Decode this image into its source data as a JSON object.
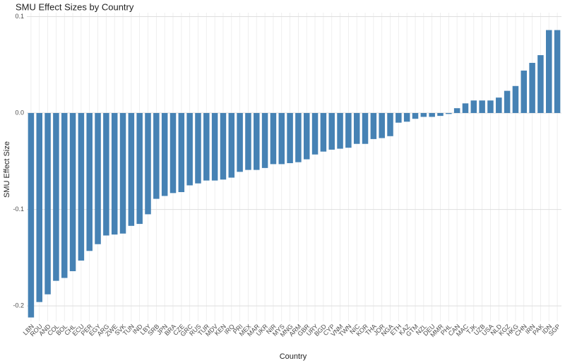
{
  "chart_data": {
    "type": "bar",
    "title": "SMU Effect Sizes by Country",
    "x_label": "Country",
    "y_label": "SMU Effect Size",
    "categories": [
      "LBN",
      "ROU",
      "AND",
      "COL",
      "BOL",
      "CHL",
      "ECU",
      "PER",
      "EGY",
      "ARG",
      "ZWE",
      "SVK",
      "TUN",
      "IND",
      "LBY",
      "SRB",
      "JPN",
      "BRA",
      "CZE",
      "GRC",
      "RUS",
      "TUR",
      "MDV",
      "KEN",
      "IRQ",
      "PRI",
      "MEX",
      "MAR",
      "UKR",
      "NIR",
      "MYS",
      "MNG",
      "ARM",
      "GBR",
      "URY",
      "BGD",
      "CYP",
      "VNM",
      "TWN",
      "NIC",
      "KOR",
      "THA",
      "JOR",
      "NGA",
      "ETH",
      "KAZ",
      "GTM",
      "NZL",
      "DEU",
      "MMR",
      "PHL",
      "CAN",
      "MAC",
      "TJK",
      "UZB",
      "USA",
      "NLD",
      "KGZ",
      "HKG",
      "CHN",
      "IRN",
      "PAK",
      "IDN",
      "SGP"
    ],
    "values": [
      -0.212,
      -0.196,
      -0.188,
      -0.174,
      -0.171,
      -0.164,
      -0.153,
      -0.143,
      -0.136,
      -0.127,
      -0.126,
      -0.125,
      -0.117,
      -0.115,
      -0.105,
      -0.089,
      -0.086,
      -0.083,
      -0.082,
      -0.075,
      -0.073,
      -0.07,
      -0.07,
      -0.069,
      -0.067,
      -0.061,
      -0.059,
      -0.059,
      -0.057,
      -0.053,
      -0.053,
      -0.052,
      -0.051,
      -0.048,
      -0.043,
      -0.04,
      -0.038,
      -0.037,
      -0.036,
      -0.032,
      -0.032,
      -0.027,
      -0.026,
      -0.024,
      -0.01,
      -0.009,
      -0.006,
      -0.004,
      -0.004,
      -0.003,
      -0.001,
      0.005,
      0.01,
      0.013,
      0.013,
      0.013,
      0.016,
      0.023,
      0.028,
      0.044,
      0.052,
      0.06,
      0.086,
      0.086
    ],
    "color": "#4682b4",
    "ylim": [
      -0.216,
      0.104
    ],
    "yticks": [
      -0.2,
      -0.1,
      {
        "value": 0,
        "label": "0.0"
      },
      0.1
    ],
    "grid": true
  }
}
